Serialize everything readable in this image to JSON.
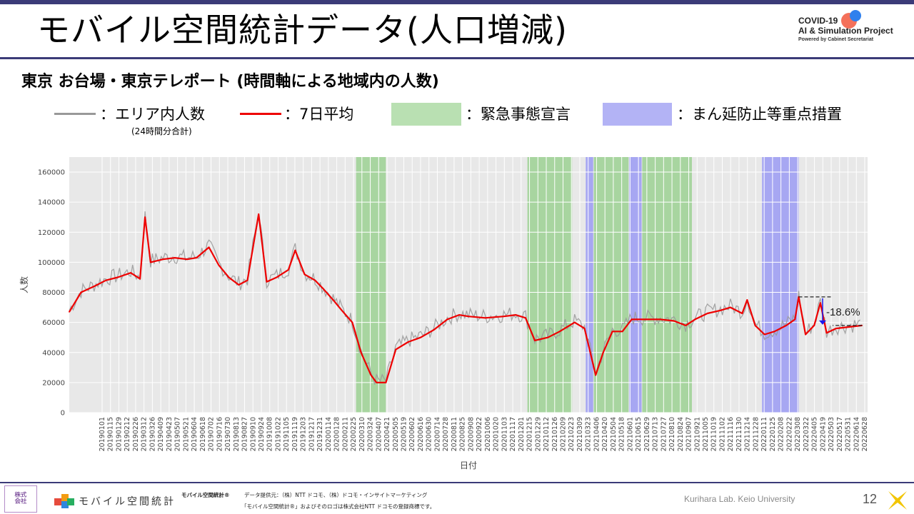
{
  "slide": {
    "title": "モバイル空間統計データ(人口増減)",
    "subtitle": "東京 お台場・東京テレポート (時間軸による地域内の人数)",
    "logo": {
      "line1": "COVID-19",
      "line2": "AI & Simulation Project",
      "line3": "Powered by Cabinet Secretariat"
    },
    "page_number": "12",
    "lab": "Kurihara Lab. Keio University"
  },
  "legend": {
    "area_count": "：エリア内人数",
    "area_note": "(24時間分合計)",
    "avg7": "：7日平均",
    "emergency": "：緊急事態宣言",
    "priority": "：まん延防止等重点措置"
  },
  "colors": {
    "raw": "#999999",
    "avg": "#ee0000",
    "emergency": "#a8d5a0",
    "priority": "#a7a7f2",
    "plot_bg": "#e8e8e8",
    "grid": "#ffffff",
    "accent": "#3b3b78"
  },
  "footer": {
    "brand": "モバイル空間統計",
    "brand_mark": "モバイル空間統計®",
    "source": "データ提供元：（株）NTT ドコモ、（株）ドコモ・インサイトマーケティング",
    "trademark": "「モバイル空間統計®」およびそのロゴは株式会社NTT ドコモの登録商標です。"
  },
  "chart_data": {
    "type": "line",
    "ylabel": "人数",
    "xlabel": "日付",
    "ylim": [
      0,
      170000
    ],
    "yticks": [
      0,
      20000,
      40000,
      60000,
      80000,
      100000,
      120000,
      140000,
      160000
    ],
    "ytick_labels": [
      "0",
      "20000",
      "40000",
      "60000",
      "80000",
      "100000",
      "120000",
      "140000",
      "160000"
    ],
    "grid": true,
    "x_start": "2019-01-01",
    "x_end": "2022-07-10",
    "x_tick_labels": [
      "20190101",
      "20190115",
      "20190129",
      "20190212",
      "20190226",
      "20190312",
      "20190326",
      "20190409",
      "20190423",
      "20190507",
      "20190521",
      "20190604",
      "20190618",
      "20190702",
      "20190716",
      "20190730",
      "20190813",
      "20190827",
      "20190910",
      "20190924",
      "20191008",
      "20191022",
      "20191105",
      "20191119",
      "20191203",
      "20191217",
      "20191231",
      "20200114",
      "20200128",
      "20200211",
      "20200225",
      "20200310",
      "20200324",
      "20200407",
      "20200421",
      "20200505",
      "20200519",
      "20200602",
      "20200616",
      "20200630",
      "20200714",
      "20200728",
      "20200811",
      "20200825",
      "20200908",
      "20200922",
      "20201006",
      "20201020",
      "20201103",
      "20201117",
      "20201201",
      "20201215",
      "20201229",
      "20210112",
      "20210126",
      "20210209",
      "20210223",
      "20210309",
      "20210323",
      "20210406",
      "20210420",
      "20210504",
      "20210518",
      "20210601",
      "20210615",
      "20210629",
      "20210713",
      "20210727",
      "20210810",
      "20210824",
      "20210907",
      "20210921",
      "20211005",
      "20211019",
      "20211102",
      "20211116",
      "20211130",
      "20211214",
      "20211228",
      "20220111",
      "20220125",
      "20220208",
      "20220222",
      "20220308",
      "20220322",
      "20220405",
      "20220419",
      "20220503",
      "20220517",
      "20220531",
      "20220614",
      "20220628"
    ],
    "emergency_periods": [
      [
        "2020-04-07",
        "2020-05-25"
      ],
      [
        "2021-01-08",
        "2021-03-21"
      ],
      [
        "2021-04-25",
        "2021-06-20"
      ],
      [
        "2021-07-12",
        "2021-09-30"
      ]
    ],
    "priority_periods": [
      [
        "2021-04-12",
        "2021-04-24"
      ],
      [
        "2021-06-21",
        "2021-07-11"
      ],
      [
        "2022-01-21",
        "2022-03-21"
      ]
    ],
    "series": [
      {
        "name": "7日平均",
        "x": [
          "2019-01-01",
          "2019-01-20",
          "2019-02-10",
          "2019-03-01",
          "2019-03-20",
          "2019-04-10",
          "2019-04-25",
          "2019-05-03",
          "2019-05-12",
          "2019-06-01",
          "2019-06-20",
          "2019-07-10",
          "2019-07-25",
          "2019-08-14",
          "2019-08-30",
          "2019-09-15",
          "2019-10-01",
          "2019-10-15",
          "2019-11-02",
          "2019-11-15",
          "2019-12-01",
          "2019-12-20",
          "2019-12-31",
          "2020-01-15",
          "2020-02-01",
          "2020-02-15",
          "2020-03-01",
          "2020-03-15",
          "2020-04-01",
          "2020-04-15",
          "2020-05-01",
          "2020-05-10",
          "2020-05-25",
          "2020-06-10",
          "2020-06-30",
          "2020-07-20",
          "2020-08-10",
          "2020-09-01",
          "2020-09-20",
          "2020-10-05",
          "2020-11-01",
          "2020-12-01",
          "2020-12-20",
          "2021-01-05",
          "2021-01-20",
          "2021-02-10",
          "2021-03-01",
          "2021-03-25",
          "2021-04-10",
          "2021-04-28",
          "2021-05-10",
          "2021-05-25",
          "2021-06-10",
          "2021-06-25",
          "2021-07-15",
          "2021-08-10",
          "2021-09-01",
          "2021-09-20",
          "2021-10-05",
          "2021-10-25",
          "2021-11-15",
          "2021-12-01",
          "2021-12-20",
          "2021-12-28",
          "2022-01-10",
          "2022-01-25",
          "2022-02-10",
          "2022-03-01",
          "2022-03-15",
          "2022-03-21",
          "2022-04-01",
          "2022-04-15",
          "2022-04-25",
          "2022-05-05",
          "2022-05-20",
          "2022-06-10",
          "2022-07-01"
        ],
        "values": [
          67000,
          80000,
          84000,
          88000,
          90000,
          93000,
          89000,
          130000,
          100000,
          102000,
          103000,
          102000,
          103000,
          110000,
          98000,
          90000,
          85000,
          88000,
          132000,
          87000,
          90000,
          95000,
          108000,
          92000,
          88000,
          82000,
          75000,
          68000,
          60000,
          40000,
          25000,
          20000,
          20000,
          42000,
          47000,
          50000,
          55000,
          62000,
          65000,
          64000,
          63000,
          64000,
          65000,
          63000,
          48000,
          50000,
          54000,
          60000,
          56000,
          25000,
          40000,
          54000,
          54000,
          62000,
          62000,
          62000,
          61000,
          58000,
          62000,
          66000,
          68000,
          70000,
          66000,
          75000,
          58000,
          52000,
          54000,
          58000,
          62000,
          77000,
          52000,
          58000,
          73000,
          53000,
          56000,
          57000,
          58000
        ]
      }
    ],
    "annotation": {
      "text": "-18.6%"
    }
  }
}
